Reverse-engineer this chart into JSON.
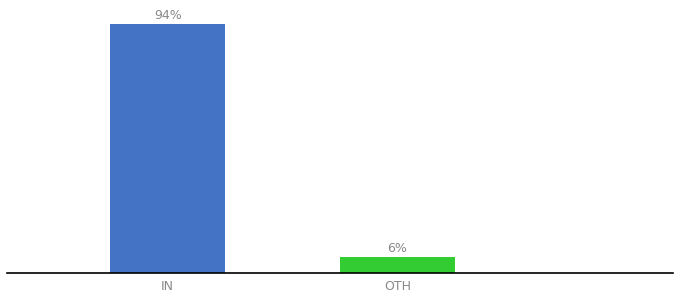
{
  "categories": [
    "IN",
    "OTH"
  ],
  "values": [
    94,
    6
  ],
  "bar_colors": [
    "#4472C4",
    "#33CC33"
  ],
  "labels": [
    "94%",
    "6%"
  ],
  "background_color": "#ffffff",
  "ylim": [
    0,
    100
  ],
  "tick_fontsize": 9,
  "label_fontsize": 9,
  "bar_width": 0.5,
  "x_positions": [
    1,
    2
  ],
  "xlim": [
    0.3,
    3.2
  ]
}
